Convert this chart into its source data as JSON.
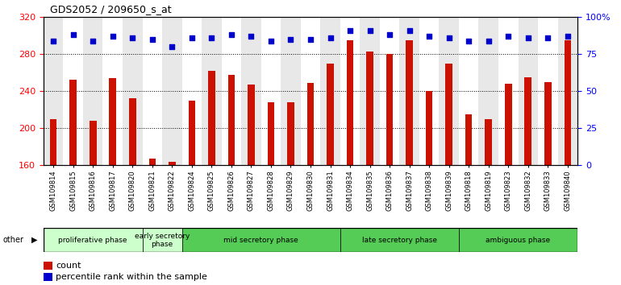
{
  "title": "GDS2052 / 209650_s_at",
  "samples": [
    "GSM109814",
    "GSM109815",
    "GSM109816",
    "GSM109817",
    "GSM109820",
    "GSM109821",
    "GSM109822",
    "GSM109824",
    "GSM109825",
    "GSM109826",
    "GSM109827",
    "GSM109828",
    "GSM109829",
    "GSM109830",
    "GSM109831",
    "GSM109834",
    "GSM109835",
    "GSM109836",
    "GSM109837",
    "GSM109838",
    "GSM109839",
    "GSM109818",
    "GSM109819",
    "GSM109823",
    "GSM109832",
    "GSM109833",
    "GSM109840"
  ],
  "counts": [
    210,
    252,
    208,
    254,
    232,
    167,
    164,
    230,
    262,
    258,
    247,
    228,
    228,
    249,
    270,
    295,
    283,
    280,
    295,
    240,
    270,
    215,
    210,
    248,
    255,
    250,
    295
  ],
  "percentile_ranks": [
    84,
    88,
    84,
    87,
    86,
    85,
    80,
    86,
    86,
    88,
    87,
    84,
    85,
    85,
    86,
    91,
    91,
    88,
    91,
    87,
    86,
    84,
    84,
    87,
    86,
    86,
    87
  ],
  "phases": [
    {
      "name": "proliferative phase",
      "start": 0,
      "end": 5,
      "color": "#ccffcc"
    },
    {
      "name": "early secretory\nphase",
      "start": 5,
      "end": 7,
      "color": "#ccffcc"
    },
    {
      "name": "mid secretory phase",
      "start": 7,
      "end": 15,
      "color": "#55cc55"
    },
    {
      "name": "late secretory phase",
      "start": 15,
      "end": 21,
      "color": "#55cc55"
    },
    {
      "name": "ambiguous phase",
      "start": 21,
      "end": 27,
      "color": "#55cc55"
    }
  ],
  "bar_color": "#cc1100",
  "dot_color": "#0000cc",
  "ylim_left": [
    160,
    320
  ],
  "ylim_right": [
    0,
    100
  ],
  "yticks_left": [
    160,
    200,
    240,
    280,
    320
  ],
  "yticks_right": [
    0,
    25,
    50,
    75,
    100
  ],
  "ytick_right_labels": [
    "0",
    "25",
    "50",
    "75",
    "100%"
  ],
  "grid_lines": [
    200,
    240,
    280
  ],
  "col_bg_odd": "#e8e8e8",
  "col_bg_even": "#ffffff"
}
